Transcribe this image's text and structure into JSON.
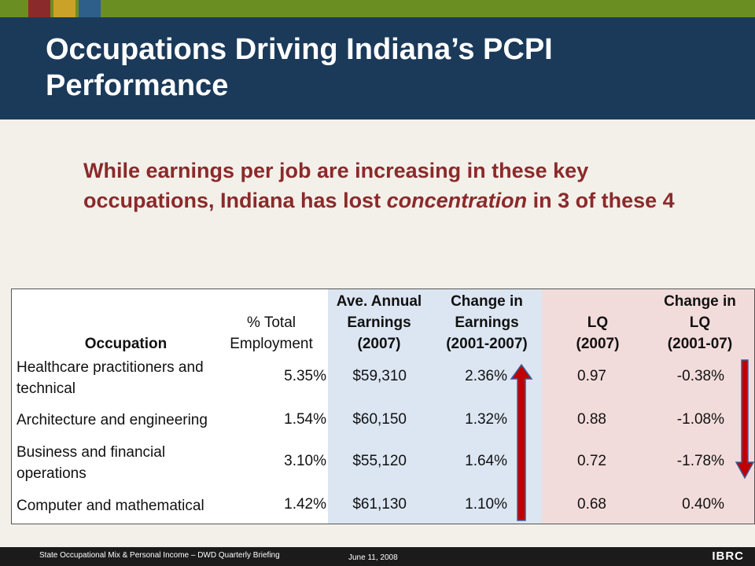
{
  "slide": {
    "title": "Occupations Driving Indiana’s PCPI Performance",
    "subtitle_parts": {
      "before": "While earnings per job are increasing in these key occupations, Indiana has lost ",
      "emphasis": "concentration",
      "after": " in 3 of these 4"
    }
  },
  "colors": {
    "header_bg": "#1b3a5a",
    "top_strip": "#6b8e23",
    "earnings_band": "#dce6f2",
    "lq_band": "#f2dcdb",
    "arrow_red": "#c00000",
    "arrow_blue": "#3a5f9e"
  },
  "table": {
    "headers": {
      "occupation": "Occupation",
      "pct_line1": "% Total",
      "pct_line2": "Employment",
      "ave_line1": "Ave. Annual",
      "ave_line2": "Earnings",
      "ave_line3": "(2007)",
      "chg_line1": "Change in",
      "chg_line2": "Earnings",
      "chg_line3": "(2001-2007)",
      "lq_line1": "LQ",
      "lq_line2": "(2007)",
      "lqchg_line1": "Change in",
      "lqchg_line2": "LQ",
      "lqchg_line3": "(2001-07)"
    },
    "rows": [
      {
        "occupation": "Healthcare practitioners and technical",
        "pct": "5.35%",
        "earnings": "$59,310",
        "change": "2.36%",
        "lq": "0.97",
        "lq_change": "-0.38%"
      },
      {
        "occupation": "Architecture and engineering",
        "pct": "1.54%",
        "earnings": "$60,150",
        "change": "1.32%",
        "lq": "0.88",
        "lq_change": "-1.08%"
      },
      {
        "occupation": "Business and financial operations",
        "pct": "3.10%",
        "earnings": "$55,120",
        "change": "1.64%",
        "lq": "0.72",
        "lq_change": "-1.78%"
      },
      {
        "occupation": "Computer and mathematical",
        "pct": "1.42%",
        "earnings": "$61,130",
        "change": "1.10%",
        "lq": "0.68",
        "lq_change": "0.40%"
      }
    ]
  },
  "footer": {
    "left": "State Occupational Mix & Personal Income – DWD Quarterly Briefing",
    "date": "June 11, 2008",
    "logo": "IBRC"
  },
  "icons": {
    "up_arrow": "red-up-arrow-icon",
    "down_arrow": "red-down-arrow-icon"
  }
}
